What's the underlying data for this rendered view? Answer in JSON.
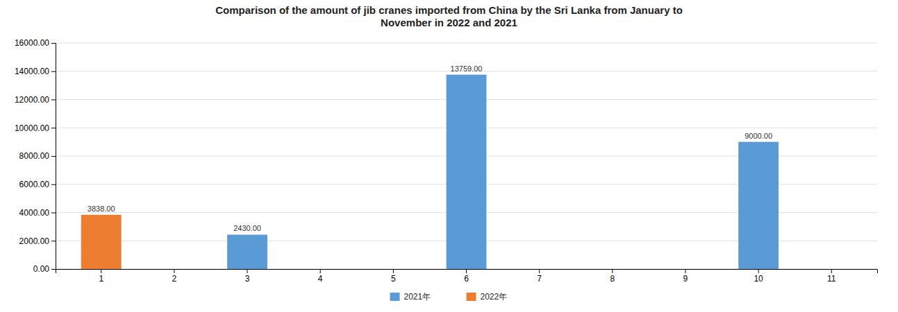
{
  "chart_data": {
    "type": "bar",
    "title": "Comparison of the amount of jib cranes imported from China by the Sri Lanka from January to\nNovember in 2022 and 2021",
    "categories": [
      "1",
      "2",
      "3",
      "4",
      "5",
      "6",
      "7",
      "8",
      "9",
      "10",
      "11"
    ],
    "series": [
      {
        "name": "2021年",
        "color": "#5B9BD5",
        "values": [
          0,
          0,
          2430,
          0,
          0,
          13759,
          0,
          0,
          0,
          9000,
          0
        ],
        "value_labels": [
          null,
          null,
          "2430.00",
          null,
          null,
          "13759.00",
          null,
          null,
          null,
          "9000.00",
          null
        ]
      },
      {
        "name": "2022年",
        "color": "#ED7D31",
        "values": [
          3838,
          0,
          0,
          0,
          0,
          0,
          0,
          0,
          0,
          0,
          0
        ],
        "value_labels": [
          "3838.00",
          null,
          null,
          null,
          null,
          null,
          null,
          null,
          null,
          null,
          null
        ]
      }
    ],
    "ylim": [
      0,
      16000
    ],
    "yticks": [
      {
        "value": 0,
        "label": "0.00"
      },
      {
        "value": 2000,
        "label": "2000.00"
      },
      {
        "value": 4000,
        "label": "4000.00"
      },
      {
        "value": 6000,
        "label": "6000.00"
      },
      {
        "value": 8000,
        "label": "8000.00"
      },
      {
        "value": 10000,
        "label": "10000.00"
      },
      {
        "value": 12000,
        "label": "12000.00"
      },
      {
        "value": 14000,
        "label": "14000.00"
      },
      {
        "value": 16000,
        "label": "16000.00"
      }
    ],
    "grid": true,
    "legend": "bottom",
    "data_labels": true
  }
}
